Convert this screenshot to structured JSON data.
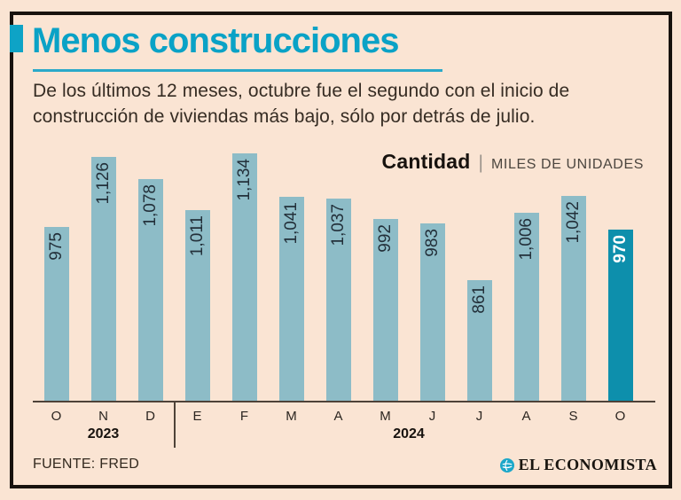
{
  "header": {
    "title": "Menos construcciones",
    "subtitle_line1": "De los últimos 12 meses, octubre fue el segundo con el inicio de",
    "subtitle_line2": "construcción de viviendas más bajo, sólo por detrás de julio."
  },
  "chart_header": {
    "label": "Cantidad",
    "separator": "|",
    "units": "MILES DE UNIDADES"
  },
  "chart_data": {
    "type": "bar",
    "title": "Cantidad",
    "ylabel": "MILES DE UNIDADES",
    "categories": [
      "O",
      "N",
      "D",
      "E",
      "F",
      "M",
      "A",
      "M",
      "J",
      "J",
      "A",
      "S",
      "O"
    ],
    "values": [
      975,
      1126,
      1078,
      1011,
      1134,
      1041,
      1037,
      992,
      983,
      861,
      1006,
      1042,
      970
    ],
    "value_labels": [
      "975",
      "1,126",
      "1,078",
      "1,011",
      "1,134",
      "1,041",
      "1,037",
      "992",
      "983",
      "861",
      "1,006",
      "1,042",
      "970"
    ],
    "highlight_index": 12,
    "year_groups": [
      {
        "label": "2023",
        "span": 3
      },
      {
        "label": "2024",
        "span": 10
      }
    ],
    "ylim": [
      600,
      1140
    ],
    "grid": false,
    "legend": "none",
    "bar_color": "#8dbcc7",
    "highlight_color": "#0d8fac",
    "value_label_color": "#23303a",
    "highlight_label_color": "#ffffff"
  },
  "footer": {
    "source": "FUENTE: FRED",
    "brand": "EL ECONOMISTA"
  },
  "colors": {
    "background": "#fae4d3",
    "accent_teal": "#0aa2c6",
    "border": "#17120e"
  }
}
